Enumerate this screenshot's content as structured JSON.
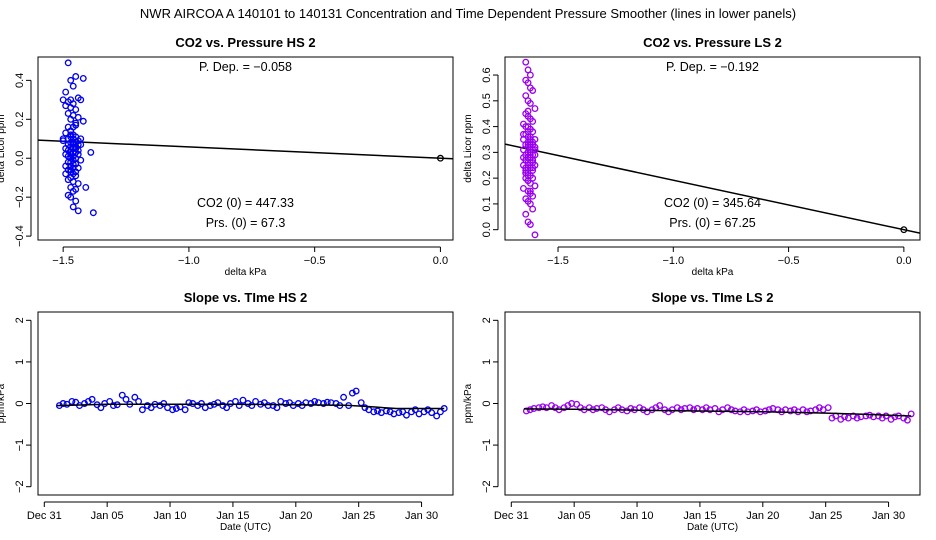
{
  "page_title": "NWR   AIRCOA A   140101 to 140131   Concentration and Time Dependent Pressure Smoother (lines in lower panels)",
  "colors": {
    "hs": "#0000ee",
    "ls": "#9900ee",
    "line": "#000000"
  },
  "chart_data": [
    {
      "id": "hs-pressure",
      "type": "scatter",
      "title": "CO2 vs. Pressure HS 2",
      "xlabel": "delta kPa",
      "ylabel": "delta Licor ppm",
      "xlim": [
        -1.6,
        0.05
      ],
      "ylim": [
        -0.42,
        0.52
      ],
      "xticks": [
        -1.5,
        -1.0,
        -0.5,
        0.0
      ],
      "xtick_labels": [
        "−1.5",
        "−1.0",
        "−0.5",
        "0.0"
      ],
      "yticks": [
        -0.4,
        -0.2,
        0.0,
        0.2,
        0.4
      ],
      "ytick_labels": [
        "−0.4",
        "−0.2",
        "0.0",
        "0.2",
        "0.4"
      ],
      "annotations": {
        "dep": "P. Dep. =  −0.058",
        "co2": "CO2 (0) =  447.33",
        "prs": "Prs. (0) =  67.3"
      },
      "fit": {
        "slope": -0.058,
        "intercept": 0.0
      },
      "origin_point": [
        0.0,
        0.0
      ],
      "points": {
        "x": [
          -1.48,
          -1.47,
          -1.46,
          -1.49,
          -1.45,
          -1.47,
          -1.44,
          -1.48,
          -1.46,
          -1.5,
          -1.43,
          -1.47,
          -1.45,
          -1.49,
          -1.46,
          -1.44,
          -1.48,
          -1.47,
          -1.45,
          -1.46,
          -1.42,
          -1.49,
          -1.47,
          -1.45,
          -1.48,
          -1.46,
          -1.5,
          -1.44,
          -1.47,
          -1.45,
          -1.46,
          -1.48,
          -1.43,
          -1.47,
          -1.49,
          -1.45,
          -1.46,
          -1.44,
          -1.48,
          -1.47,
          -1.45,
          -1.46,
          -1.49,
          -1.47,
          -1.44,
          -1.46,
          -1.48,
          -1.45,
          -1.47,
          -1.46,
          -1.43,
          -1.48,
          -1.47,
          -1.45,
          -1.46,
          -1.49,
          -1.47,
          -1.44,
          -1.46,
          -1.48,
          -1.45,
          -1.47,
          -1.46,
          -1.45,
          -1.47,
          -1.48,
          -1.46,
          -1.44,
          -1.47,
          -1.45,
          -1.46,
          -1.48,
          -1.47,
          -1.45,
          -1.46,
          -1.44,
          -1.47,
          -1.48,
          -1.46,
          -1.47,
          -1.45,
          -1.5,
          -1.46,
          -1.43,
          -1.49,
          -1.46,
          -1.47,
          -1.44,
          -1.45,
          -1.42,
          -1.39,
          -1.38,
          -1.41
        ],
        "y": [
          0.49,
          0.4,
          0.37,
          0.34,
          0.42,
          0.3,
          0.31,
          0.29,
          0.28,
          0.3,
          0.3,
          0.26,
          0.25,
          0.27,
          0.22,
          0.21,
          0.23,
          0.2,
          0.18,
          0.16,
          0.19,
          0.13,
          0.12,
          0.11,
          0.1,
          0.1,
          0.09,
          0.09,
          0.08,
          0.08,
          0.07,
          0.07,
          0.07,
          0.06,
          0.05,
          0.05,
          0.05,
          0.04,
          0.04,
          0.03,
          0.03,
          0.03,
          0.02,
          0.02,
          0.02,
          0.01,
          0.01,
          0.0,
          0.0,
          -0.01,
          -0.01,
          -0.02,
          -0.02,
          -0.03,
          -0.03,
          -0.04,
          -0.04,
          -0.05,
          -0.05,
          -0.06,
          -0.07,
          -0.07,
          -0.08,
          -0.09,
          -0.1,
          -0.11,
          -0.12,
          -0.13,
          -0.15,
          -0.16,
          -0.17,
          -0.19,
          -0.2,
          -0.22,
          -0.25,
          -0.27,
          0.14,
          0.16,
          0.12,
          0.11,
          0.17,
          0.1,
          0.05,
          0.1,
          -0.08,
          0.08,
          -0.06,
          0.07,
          0.06,
          0.41,
          0.03,
          -0.28,
          -0.15
        ]
      }
    },
    {
      "id": "ls-pressure",
      "type": "scatter",
      "title": "CO2 vs. Pressure LS 2",
      "xlabel": "delta kPa",
      "ylabel": "delta Licor ppm",
      "xlim": [
        -1.73,
        0.07
      ],
      "ylim": [
        -0.04,
        0.67
      ],
      "xticks": [
        -1.5,
        -1.0,
        -0.5,
        0.0
      ],
      "xtick_labels": [
        "−1.5",
        "−1.0",
        "−0.5",
        "0.0"
      ],
      "yticks": [
        0.0,
        0.1,
        0.2,
        0.3,
        0.4,
        0.5,
        0.6
      ],
      "ytick_labels": [
        "0.0",
        "0.1",
        "0.2",
        "0.3",
        "0.4",
        "0.5",
        "0.6"
      ],
      "annotations": {
        "dep": "P. Dep. =  −0.192",
        "co2": "CO2 (0) =  345.64",
        "prs": "Prs. (0) =  67.25"
      },
      "fit": {
        "slope": -0.192,
        "intercept": 0.0
      },
      "origin_point": [
        0.0,
        0.0
      ],
      "points": {
        "x": [
          -1.64,
          -1.63,
          -1.62,
          -1.64,
          -1.63,
          -1.62,
          -1.61,
          -1.64,
          -1.63,
          -1.62,
          -1.6,
          -1.64,
          -1.63,
          -1.62,
          -1.61,
          -1.65,
          -1.63,
          -1.62,
          -1.61,
          -1.64,
          -1.63,
          -1.62,
          -1.6,
          -1.65,
          -1.63,
          -1.62,
          -1.61,
          -1.64,
          -1.63,
          -1.62,
          -1.6,
          -1.65,
          -1.63,
          -1.62,
          -1.61,
          -1.64,
          -1.63,
          -1.62,
          -1.61,
          -1.64,
          -1.63,
          -1.62,
          -1.6,
          -1.65,
          -1.63,
          -1.62,
          -1.61,
          -1.64,
          -1.63,
          -1.62,
          -1.61,
          -1.64,
          -1.63,
          -1.62,
          -1.6,
          -1.65,
          -1.63,
          -1.62,
          -1.61,
          -1.64,
          -1.63,
          -1.62,
          -1.61,
          -1.64,
          -1.63,
          -1.62,
          -1.6,
          -1.65,
          -1.63,
          -1.62,
          -1.61,
          -1.64,
          -1.63,
          -1.62,
          -1.61,
          -1.64,
          -1.63,
          -1.62,
          -1.6,
          -1.65,
          -1.63,
          -1.62,
          -1.61,
          -1.64,
          -1.63,
          -1.62,
          -1.61,
          -1.64,
          -1.63,
          -1.62,
          -1.6,
          -1.63,
          -1.62,
          -1.61,
          -1.64,
          -1.63
        ],
        "y": [
          0.65,
          0.62,
          0.6,
          0.58,
          0.57,
          0.55,
          0.54,
          0.52,
          0.5,
          0.49,
          0.47,
          0.45,
          0.44,
          0.43,
          0.42,
          0.41,
          0.4,
          0.39,
          0.38,
          0.37,
          0.36,
          0.36,
          0.35,
          0.35,
          0.34,
          0.34,
          0.33,
          0.33,
          0.32,
          0.32,
          0.31,
          0.31,
          0.3,
          0.3,
          0.29,
          0.29,
          0.28,
          0.28,
          0.27,
          0.27,
          0.26,
          0.26,
          0.25,
          0.25,
          0.24,
          0.24,
          0.23,
          0.22,
          0.22,
          0.21,
          0.2,
          0.2,
          0.19,
          0.18,
          0.17,
          0.16,
          0.15,
          0.14,
          0.13,
          0.12,
          0.11,
          0.1,
          0.08,
          0.06,
          0.03,
          0.02,
          -0.02,
          0.37,
          0.33,
          0.29,
          0.26,
          0.23,
          0.21,
          0.31,
          0.27,
          0.24,
          0.38,
          0.35,
          0.32,
          0.28,
          0.25,
          0.3,
          0.34,
          0.22,
          0.36,
          0.28,
          0.31,
          0.27,
          0.19,
          0.33,
          0.29,
          0.46,
          0.15,
          0.24,
          0.4,
          0.3
        ]
      }
    },
    {
      "id": "hs-time",
      "type": "scatter",
      "title": "Slope vs. TIme HS 2",
      "xlabel": "Date (UTC)",
      "ylabel": "ppm/kPa",
      "xlim": [
        -0.5,
        32.5
      ],
      "ylim": [
        -2.2,
        2.2
      ],
      "xticks": [
        0,
        5,
        10,
        15,
        20,
        25,
        30
      ],
      "xtick_labels": [
        "Dec 31",
        "Jan 05",
        "Jan 10",
        "Jan 15",
        "Jan 20",
        "Jan 25",
        "Jan 30"
      ],
      "yticks": [
        -2,
        -1,
        0,
        1,
        2
      ],
      "ytick_labels": [
        "−2",
        "−1",
        "0",
        "1",
        "2"
      ],
      "smoother": {
        "x": [
          1.0,
          5.0,
          10.0,
          15.0,
          20.0,
          24.0,
          26.0,
          28.0,
          30.0,
          31.8
        ],
        "y": [
          -0.05,
          -0.02,
          -0.02,
          -0.02,
          -0.03,
          -0.04,
          -0.08,
          -0.12,
          -0.12,
          -0.12
        ]
      },
      "points": {
        "x": [
          1.2,
          1.5,
          1.8,
          2.2,
          2.5,
          2.8,
          3.2,
          3.5,
          3.8,
          4.2,
          4.5,
          4.8,
          5.2,
          5.5,
          5.8,
          6.2,
          6.5,
          6.8,
          7.2,
          7.5,
          7.8,
          8.2,
          8.5,
          8.8,
          9.2,
          9.5,
          9.8,
          10.2,
          10.5,
          10.8,
          11.2,
          11.5,
          11.8,
          12.2,
          12.5,
          12.8,
          13.2,
          13.5,
          13.8,
          14.2,
          14.5,
          14.8,
          15.2,
          15.5,
          15.8,
          16.2,
          16.5,
          16.8,
          17.2,
          17.5,
          17.8,
          18.2,
          18.5,
          18.8,
          19.2,
          19.5,
          19.8,
          20.2,
          20.5,
          20.8,
          21.2,
          21.5,
          21.8,
          22.2,
          22.5,
          22.8,
          23.2,
          23.5,
          23.8,
          24.2,
          24.5,
          24.8,
          25.2,
          25.5,
          25.8,
          26.2,
          26.5,
          26.8,
          27.2,
          27.5,
          27.8,
          28.2,
          28.5,
          28.8,
          29.2,
          29.5,
          29.8,
          30.2,
          30.5,
          30.8,
          31.2,
          31.5,
          31.8
        ],
        "y": [
          -0.05,
          0.0,
          -0.02,
          0.05,
          0.03,
          -0.05,
          0.0,
          0.05,
          0.1,
          -0.03,
          -0.1,
          0.0,
          0.05,
          -0.05,
          -0.03,
          0.2,
          0.1,
          -0.02,
          0.15,
          0.05,
          -0.15,
          -0.05,
          -0.1,
          -0.02,
          -0.05,
          0.0,
          -0.1,
          -0.15,
          -0.12,
          -0.08,
          -0.15,
          0.02,
          0.0,
          -0.05,
          0.0,
          -0.1,
          -0.05,
          -0.02,
          0.02,
          -0.05,
          -0.1,
          0.0,
          0.05,
          -0.05,
          0.08,
          0.0,
          -0.05,
          0.05,
          -0.02,
          0.02,
          -0.05,
          -0.05,
          -0.1,
          0.05,
          0.0,
          0.02,
          -0.05,
          0.0,
          -0.05,
          0.02,
          0.0,
          0.05,
          0.02,
          0.0,
          0.03,
          0.02,
          0.0,
          -0.05,
          0.15,
          -0.05,
          0.25,
          0.3,
          0.02,
          -0.1,
          -0.15,
          -0.2,
          -0.18,
          -0.22,
          -0.18,
          -0.2,
          -0.25,
          -0.22,
          -0.2,
          -0.28,
          -0.2,
          -0.15,
          -0.25,
          -0.2,
          -0.15,
          -0.22,
          -0.3,
          -0.2,
          -0.12
        ]
      }
    },
    {
      "id": "ls-time",
      "type": "scatter",
      "title": "Slope vs. TIme LS 2",
      "xlabel": "Date (UTC)",
      "ylabel": "ppm/kPa",
      "xlim": [
        -0.5,
        32.5
      ],
      "ylim": [
        -2.2,
        2.2
      ],
      "xticks": [
        0,
        5,
        10,
        15,
        20,
        25,
        30
      ],
      "xtick_labels": [
        "Dec 31",
        "Jan 05",
        "Jan 10",
        "Jan 15",
        "Jan 20",
        "Jan 25",
        "Jan 30"
      ],
      "yticks": [
        -2,
        -1,
        0,
        1,
        2
      ],
      "ytick_labels": [
        "−2",
        "−1",
        "0",
        "1",
        "2"
      ],
      "smoother": {
        "x": [
          1.0,
          5.0,
          10.0,
          15.0,
          20.0,
          25.0,
          28.0,
          31.8
        ],
        "y": [
          -0.13,
          -0.14,
          -0.16,
          -0.18,
          -0.2,
          -0.23,
          -0.26,
          -0.3
        ]
      },
      "points": {
        "x": [
          1.2,
          1.5,
          1.8,
          2.2,
          2.5,
          2.8,
          3.2,
          3.5,
          3.8,
          4.2,
          4.5,
          4.8,
          5.2,
          5.5,
          5.8,
          6.2,
          6.5,
          6.8,
          7.2,
          7.5,
          7.8,
          8.2,
          8.5,
          8.8,
          9.2,
          9.5,
          9.8,
          10.2,
          10.5,
          10.8,
          11.2,
          11.5,
          11.8,
          12.2,
          12.5,
          12.8,
          13.2,
          13.5,
          13.8,
          14.2,
          14.5,
          14.8,
          15.2,
          15.5,
          15.8,
          16.2,
          16.5,
          16.8,
          17.2,
          17.5,
          17.8,
          18.2,
          18.5,
          18.8,
          19.2,
          19.5,
          19.8,
          20.2,
          20.5,
          20.8,
          21.2,
          21.5,
          21.8,
          22.2,
          22.5,
          22.8,
          23.2,
          23.5,
          23.8,
          24.2,
          24.5,
          24.8,
          25.2,
          25.5,
          25.8,
          26.2,
          26.5,
          26.8,
          27.2,
          27.5,
          27.8,
          28.2,
          28.5,
          28.8,
          29.2,
          29.5,
          29.8,
          30.2,
          30.5,
          30.8,
          31.2,
          31.5,
          31.8
        ],
        "y": [
          -0.18,
          -0.15,
          -0.12,
          -0.1,
          -0.08,
          -0.1,
          -0.05,
          -0.1,
          -0.15,
          -0.1,
          -0.05,
          0.0,
          -0.02,
          -0.1,
          -0.15,
          -0.1,
          -0.15,
          -0.12,
          -0.1,
          -0.15,
          -0.2,
          -0.15,
          -0.1,
          -0.15,
          -0.18,
          -0.12,
          -0.15,
          -0.1,
          -0.15,
          -0.2,
          -0.15,
          -0.1,
          -0.05,
          -0.15,
          -0.2,
          -0.15,
          -0.1,
          -0.15,
          -0.12,
          -0.1,
          -0.15,
          -0.12,
          -0.15,
          -0.1,
          -0.15,
          -0.12,
          -0.2,
          -0.15,
          -0.1,
          -0.15,
          -0.18,
          -0.2,
          -0.15,
          -0.2,
          -0.18,
          -0.15,
          -0.2,
          -0.18,
          -0.15,
          -0.12,
          -0.15,
          -0.2,
          -0.15,
          -0.18,
          -0.15,
          -0.2,
          -0.15,
          -0.2,
          -0.18,
          -0.15,
          -0.1,
          -0.15,
          -0.1,
          -0.35,
          -0.3,
          -0.38,
          -0.32,
          -0.35,
          -0.3,
          -0.35,
          -0.32,
          -0.3,
          -0.28,
          -0.32,
          -0.3,
          -0.35,
          -0.3,
          -0.38,
          -0.32,
          -0.3,
          -0.35,
          -0.4,
          -0.25
        ]
      }
    }
  ]
}
